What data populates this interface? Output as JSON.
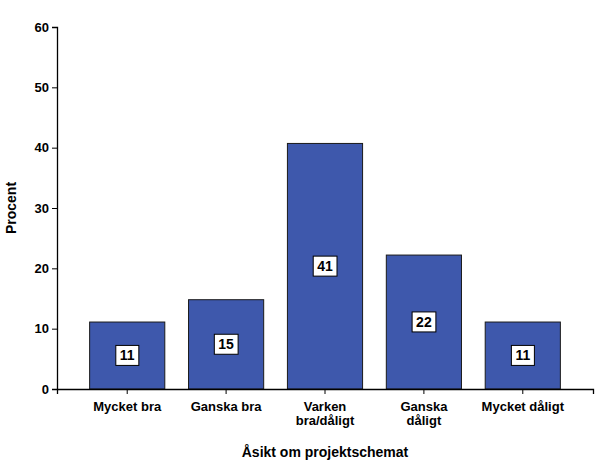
{
  "chart_data": {
    "type": "bar",
    "x_label": "Åsikt om projektschemat",
    "y_label": "Procent",
    "categories": [
      "Mycket bra",
      "Ganska bra",
      "Varken\nbra/dåligt",
      "Ganska\ndåligt",
      "Mycket dåligt"
    ],
    "values": [
      11.1,
      14.8,
      40.7,
      22.2,
      11.1
    ],
    "value_labels": [
      "11",
      "15",
      "41",
      "22",
      "11"
    ],
    "data_labels": true,
    "color": "#3e58ac",
    "ylim": [
      0,
      60
    ],
    "yticks": [
      0,
      10,
      20,
      30,
      40,
      50,
      60
    ],
    "grid": false
  }
}
